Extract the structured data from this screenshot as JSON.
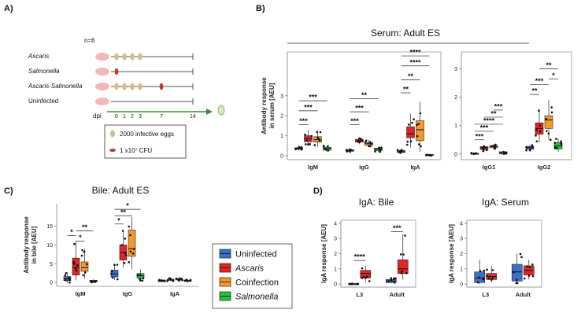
{
  "panel_labels": {
    "a": "A)",
    "b": "B)",
    "c": "C)",
    "d": "D)"
  },
  "schematic": {
    "n_label": "n=6",
    "groups": [
      "Ascaris",
      "Salmonella",
      "Ascaris-Salmonella",
      "Uninfected"
    ],
    "dpi_label": "dpi",
    "dpi_ticks": [
      "0",
      "1",
      "2",
      "3",
      "7",
      "14"
    ],
    "legend_eggs": "2000 infective eggs",
    "legend_cfu": "1 x10⁷ CFU",
    "colors": {
      "egg": "#d8b98a",
      "salmonella": "#c0392b",
      "pig": "#f3b8b8",
      "timeline": "#3a8a3a"
    }
  },
  "legend": {
    "items": [
      {
        "label": "Uninfected",
        "color": "#3b6fc4",
        "italic": false
      },
      {
        "label": "Ascaris",
        "color": "#e02626",
        "italic": true
      },
      {
        "label": "Coinfection",
        "color": "#f59a2a",
        "italic": false
      },
      {
        "label": "Salmonella",
        "color": "#22c43a",
        "italic": true
      }
    ]
  },
  "chart_data": [
    {
      "id": "B1",
      "type": "box",
      "title": "Serum: Adult ES",
      "ylabel": "Antibody response in serum [AEU]",
      "ylim": [
        -0.2,
        5.2
      ],
      "yticks": [
        0,
        1,
        2,
        3
      ],
      "categories": [
        "IgM",
        "IgG",
        "IgA"
      ],
      "series": [
        {
          "name": "Uninfected",
          "boxes": [
            [
              0.28,
              0.32,
              0.36,
              0.4,
              0.46
            ],
            [
              0.18,
              0.22,
              0.26,
              0.3,
              0.34
            ],
            [
              0.12,
              0.16,
              0.2,
              0.26,
              0.3
            ]
          ]
        },
        {
          "name": "Ascaris",
          "boxes": [
            [
              0.5,
              0.7,
              0.85,
              1.0,
              1.3
            ],
            [
              0.58,
              0.68,
              0.75,
              0.82,
              0.9
            ],
            [
              0.4,
              0.9,
              1.1,
              1.45,
              2.1
            ]
          ]
        },
        {
          "name": "Coinfection",
          "boxes": [
            [
              0.45,
              0.68,
              0.8,
              0.95,
              1.25
            ],
            [
              0.42,
              0.52,
              0.6,
              0.66,
              0.78
            ],
            [
              0.2,
              0.75,
              1.3,
              1.75,
              2.7
            ]
          ]
        },
        {
          "name": "Salmonella",
          "boxes": [
            [
              0.2,
              0.28,
              0.36,
              0.42,
              0.5
            ],
            [
              0.18,
              0.26,
              0.32,
              0.38,
              0.44
            ],
            [
              0.0,
              0.02,
              0.04,
              0.06,
              0.08
            ]
          ]
        }
      ],
      "significance": [
        "***",
        "***",
        "***",
        "***",
        "***",
        "**",
        "**",
        "**",
        "****",
        "****"
      ]
    },
    {
      "id": "B2",
      "type": "box",
      "ylim": [
        -0.2,
        3.6
      ],
      "yticks": [
        0,
        1,
        2,
        3
      ],
      "categories": [
        "IgG1",
        "IgG2"
      ],
      "series": [
        {
          "name": "Uninfected",
          "boxes": [
            [
              0.0,
              0.01,
              0.02,
              0.03,
              0.04
            ],
            [
              0.12,
              0.17,
              0.22,
              0.27,
              0.32
            ]
          ]
        },
        {
          "name": "Ascaris",
          "boxes": [
            [
              0.1,
              0.16,
              0.22,
              0.26,
              0.32
            ],
            [
              0.4,
              0.7,
              0.9,
              1.1,
              1.6
            ]
          ]
        },
        {
          "name": "Coinfection",
          "boxes": [
            [
              0.18,
              0.22,
              0.26,
              0.3,
              0.34
            ],
            [
              0.5,
              0.9,
              1.2,
              1.35,
              1.9
            ]
          ]
        },
        {
          "name": "Salmonella",
          "boxes": [
            [
              0.0,
              0.02,
              0.04,
              0.08,
              0.12
            ],
            [
              0.08,
              0.18,
              0.28,
              0.4,
              0.55
            ]
          ]
        }
      ],
      "significance": [
        "***",
        "***",
        "****",
        "**",
        "***",
        "**",
        "***",
        "*",
        "**"
      ]
    },
    {
      "id": "C",
      "type": "box",
      "title": "Bile: Adult ES",
      "ylabel": "Antibody response in bile [AEU]",
      "ylim": [
        -1,
        21
      ],
      "yticks": [
        0,
        5,
        10,
        15
      ],
      "categories": [
        "IgM",
        "IgG",
        "IgA"
      ],
      "series": [
        {
          "name": "Uninfected",
          "boxes": [
            [
              0.0,
              0.5,
              1.0,
              1.6,
              2.8
            ],
            [
              0.7,
              1.5,
              2.3,
              3.3,
              4.8
            ],
            [
              0.3,
              0.5,
              0.6,
              0.7,
              0.9
            ]
          ]
        },
        {
          "name": "Ascaris",
          "boxes": [
            [
              0.6,
              2.0,
              4.0,
              6.5,
              11.0
            ],
            [
              4.0,
              6.0,
              8.0,
              10.0,
              14.0
            ],
            [
              0.4,
              0.6,
              0.7,
              0.9,
              1.2
            ]
          ]
        },
        {
          "name": "Coinfection",
          "boxes": [
            [
              1.0,
              3.0,
              4.0,
              5.5,
              9.0
            ],
            [
              3.5,
              7.0,
              9.0,
              14.0,
              17.5
            ],
            [
              0.5,
              0.7,
              0.9,
              1.1,
              1.4
            ]
          ]
        },
        {
          "name": "Salmonella",
          "boxes": [
            [
              0.0,
              0.2,
              0.4,
              0.6,
              0.9
            ],
            [
              0.4,
              1.2,
              1.8,
              2.4,
              3.5
            ],
            [
              0.3,
              0.4,
              0.5,
              0.6,
              0.8
            ]
          ]
        }
      ],
      "significance": [
        "*",
        "*",
        "**",
        "*",
        "**",
        "*"
      ]
    },
    {
      "id": "D1",
      "type": "box",
      "title": "IgA: Bile",
      "ylabel": "IgA response [AEU]",
      "ylim": [
        -0.2,
        4.2
      ],
      "yticks": [
        0,
        1,
        2,
        3,
        4
      ],
      "categories": [
        "L3",
        "Adult"
      ],
      "series": [
        {
          "name": "Uninfected",
          "boxes": [
            [
              0.0,
              0.01,
              0.02,
              0.03,
              0.04
            ],
            [
              0.05,
              0.1,
              0.2,
              0.3,
              0.4
            ]
          ]
        },
        {
          "name": "Ascaris",
          "boxes": [
            [
              0.1,
              0.4,
              0.7,
              0.9,
              1.2
            ],
            [
              0.3,
              0.7,
              1.0,
              1.6,
              3.3
            ]
          ]
        }
      ],
      "significance": [
        "****",
        "***"
      ]
    },
    {
      "id": "D2",
      "type": "box",
      "title": "IgA: Serum",
      "ylabel": "IgA response [AEU]",
      "ylim": [
        -0.2,
        4.2
      ],
      "yticks": [
        0,
        1,
        2,
        3,
        4
      ],
      "categories": [
        "L3",
        "Adult"
      ],
      "series": [
        {
          "name": "Uninfected",
          "boxes": [
            [
              0.0,
              0.1,
              0.4,
              0.8,
              1.6
            ],
            [
              0.0,
              0.2,
              0.8,
              1.3,
              2.0
            ]
          ]
        },
        {
          "name": "Ascaris",
          "boxes": [
            [
              0.1,
              0.3,
              0.5,
              0.7,
              1.2
            ],
            [
              0.3,
              0.6,
              0.9,
              1.2,
              1.6
            ]
          ]
        }
      ],
      "significance": []
    }
  ]
}
